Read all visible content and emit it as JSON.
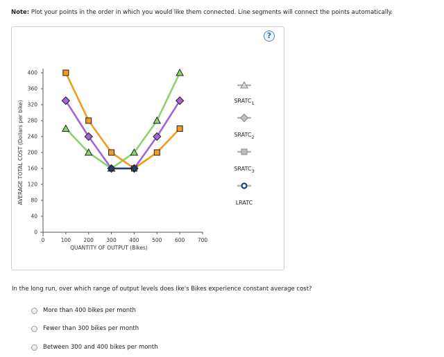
{
  "note": {
    "prefix": "Note:",
    "text": "Plot your points in the order in which you would like them connected. Line segments will connect the points automatically."
  },
  "help_button": {
    "label": "?"
  },
  "chart_data": {
    "type": "line",
    "xlabel": "QUANTITY OF OUTPUT (Bikes)",
    "ylabel": "AVERAGE TOTAL COST (Dollars per bike)",
    "xlim": [
      0,
      700
    ],
    "ylim": [
      0,
      400
    ],
    "xticks": [
      0,
      100,
      200,
      300,
      400,
      500,
      600,
      700
    ],
    "yticks": [
      0,
      40,
      80,
      120,
      160,
      200,
      240,
      280,
      320,
      360,
      400
    ],
    "series": [
      {
        "name": "SRATC1",
        "base": "SRATC",
        "sub": "1",
        "color": "#f39a1f",
        "marker": "square",
        "points": [
          [
            100,
            400
          ],
          [
            200,
            280
          ],
          [
            300,
            200
          ],
          [
            400,
            160
          ],
          [
            500,
            200
          ],
          [
            600,
            260
          ]
        ]
      },
      {
        "name": "SRATC2",
        "base": "SRATC",
        "sub": "2",
        "color": "#a463d9",
        "marker": "diamond",
        "points": [
          [
            100,
            330
          ],
          [
            200,
            240
          ],
          [
            300,
            160
          ],
          [
            400,
            160
          ],
          [
            500,
            240
          ],
          [
            600,
            330
          ]
        ]
      },
      {
        "name": "SRATC3",
        "base": "SRATC",
        "sub": "3",
        "color": "#8bd36a",
        "marker": "triangle",
        "points": [
          [
            100,
            260
          ],
          [
            200,
            200
          ],
          [
            300,
            160
          ],
          [
            400,
            200
          ],
          [
            500,
            280
          ],
          [
            600,
            400
          ]
        ]
      },
      {
        "name": "LRATC",
        "base": "LRATC",
        "sub": "",
        "color": "#1f3f7a",
        "marker": "circle",
        "points": [
          [
            300,
            160
          ],
          [
            400,
            160
          ]
        ]
      }
    ],
    "legend_position": "right",
    "legend_tool_order": [
      "triangle",
      "diamond",
      "square",
      "circle"
    ],
    "legend_label_order": [
      "SRATC1",
      "SRATC2",
      "SRATC3",
      "LRATC"
    ]
  },
  "question": {
    "text": "In the long run, over which range of output levels does Ike's Bikes experience constant average cost?",
    "options": [
      "More than 400 bikes per month",
      "Fewer than 300 bikes per month",
      "Between 300 and 400 bikes per month"
    ]
  }
}
